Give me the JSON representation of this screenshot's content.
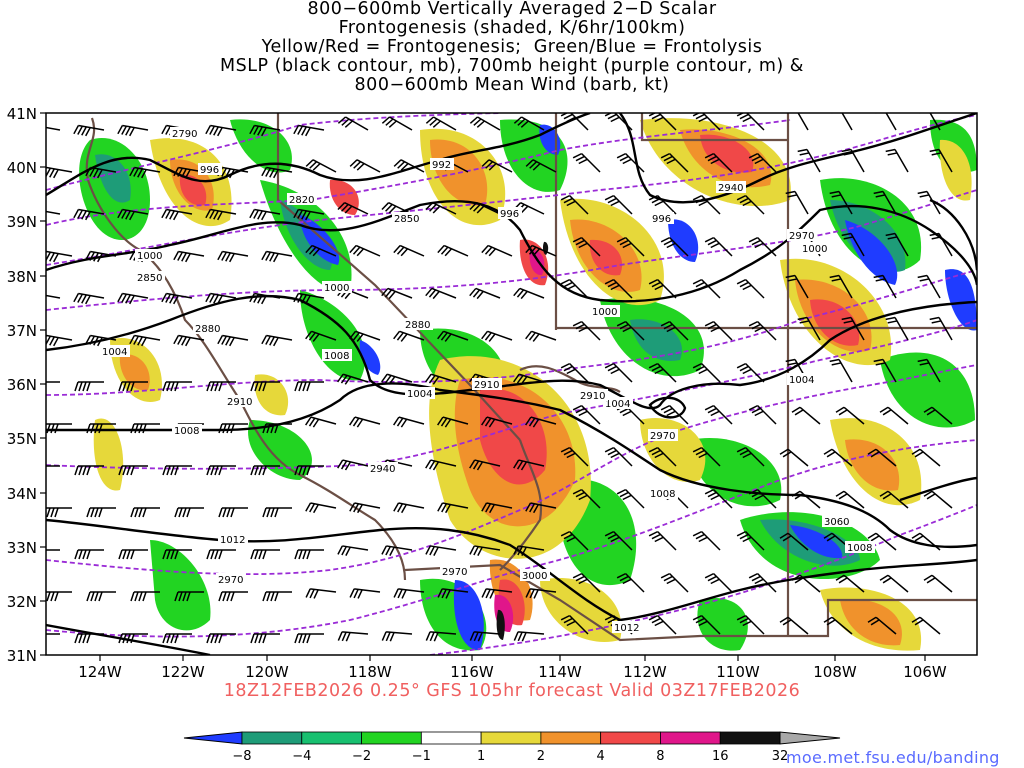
{
  "title": {
    "lines": [
      "800−600mb Vertically Averaged 2−D Scalar",
      "Frontogenesis (shaded, K/6hr/100km)",
      "Yellow/Red = Frontogenesis;  Green/Blue = Frontolysis",
      "MSLP (black contour, mb), 700mb height (purple contour, m) &",
      "800−600mb Mean Wind (barb, kt)"
    ]
  },
  "axes": {
    "lat_labels": [
      "41N",
      "40N",
      "39N",
      "38N",
      "37N",
      "36N",
      "35N",
      "34N",
      "33N",
      "32N",
      "31N"
    ],
    "lon_labels": [
      "124W",
      "122W",
      "120W",
      "118W",
      "116W",
      "114W",
      "112W",
      "110W",
      "108W",
      "106W"
    ]
  },
  "subtitle": "18Z12FEB2026 0.25° GFS 105hr forecast Valid 03Z17FEB2026",
  "credit": "moe.met.fsu.edu/banding",
  "colorbar": {
    "labels": [
      "−8",
      "−4",
      "−2",
      "−1",
      "1",
      "2",
      "4",
      "8",
      "16",
      "32"
    ],
    "colors": [
      "#1f3cff",
      "#1e9c78",
      "#18c070",
      "#22d422",
      "#ffffff",
      "#e6d83a",
      "#f0922c",
      "#f04848",
      "#e0168a",
      "#111111",
      "#a8a8a8"
    ]
  },
  "map_labels": {
    "mslp": [
      "996",
      "992",
      "996",
      "996",
      "1000",
      "1000",
      "1000",
      "1000",
      "1004",
      "1004",
      "1004",
      "1008",
      "1008",
      "1008",
      "1012",
      "1012",
      "1004",
      "1008"
    ],
    "height": [
      "2790",
      "2820",
      "2850",
      "2850",
      "2880",
      "2880",
      "2910",
      "2910",
      "2910",
      "2940",
      "2940",
      "2970",
      "2970",
      "2970",
      "2970",
      "3000",
      "3060"
    ]
  },
  "colors": {
    "mslp": "#000000",
    "height": "#9a2bd6",
    "terrain": "#6b4f45",
    "subtitle": "#f06060",
    "credit": "#5a6bff"
  }
}
